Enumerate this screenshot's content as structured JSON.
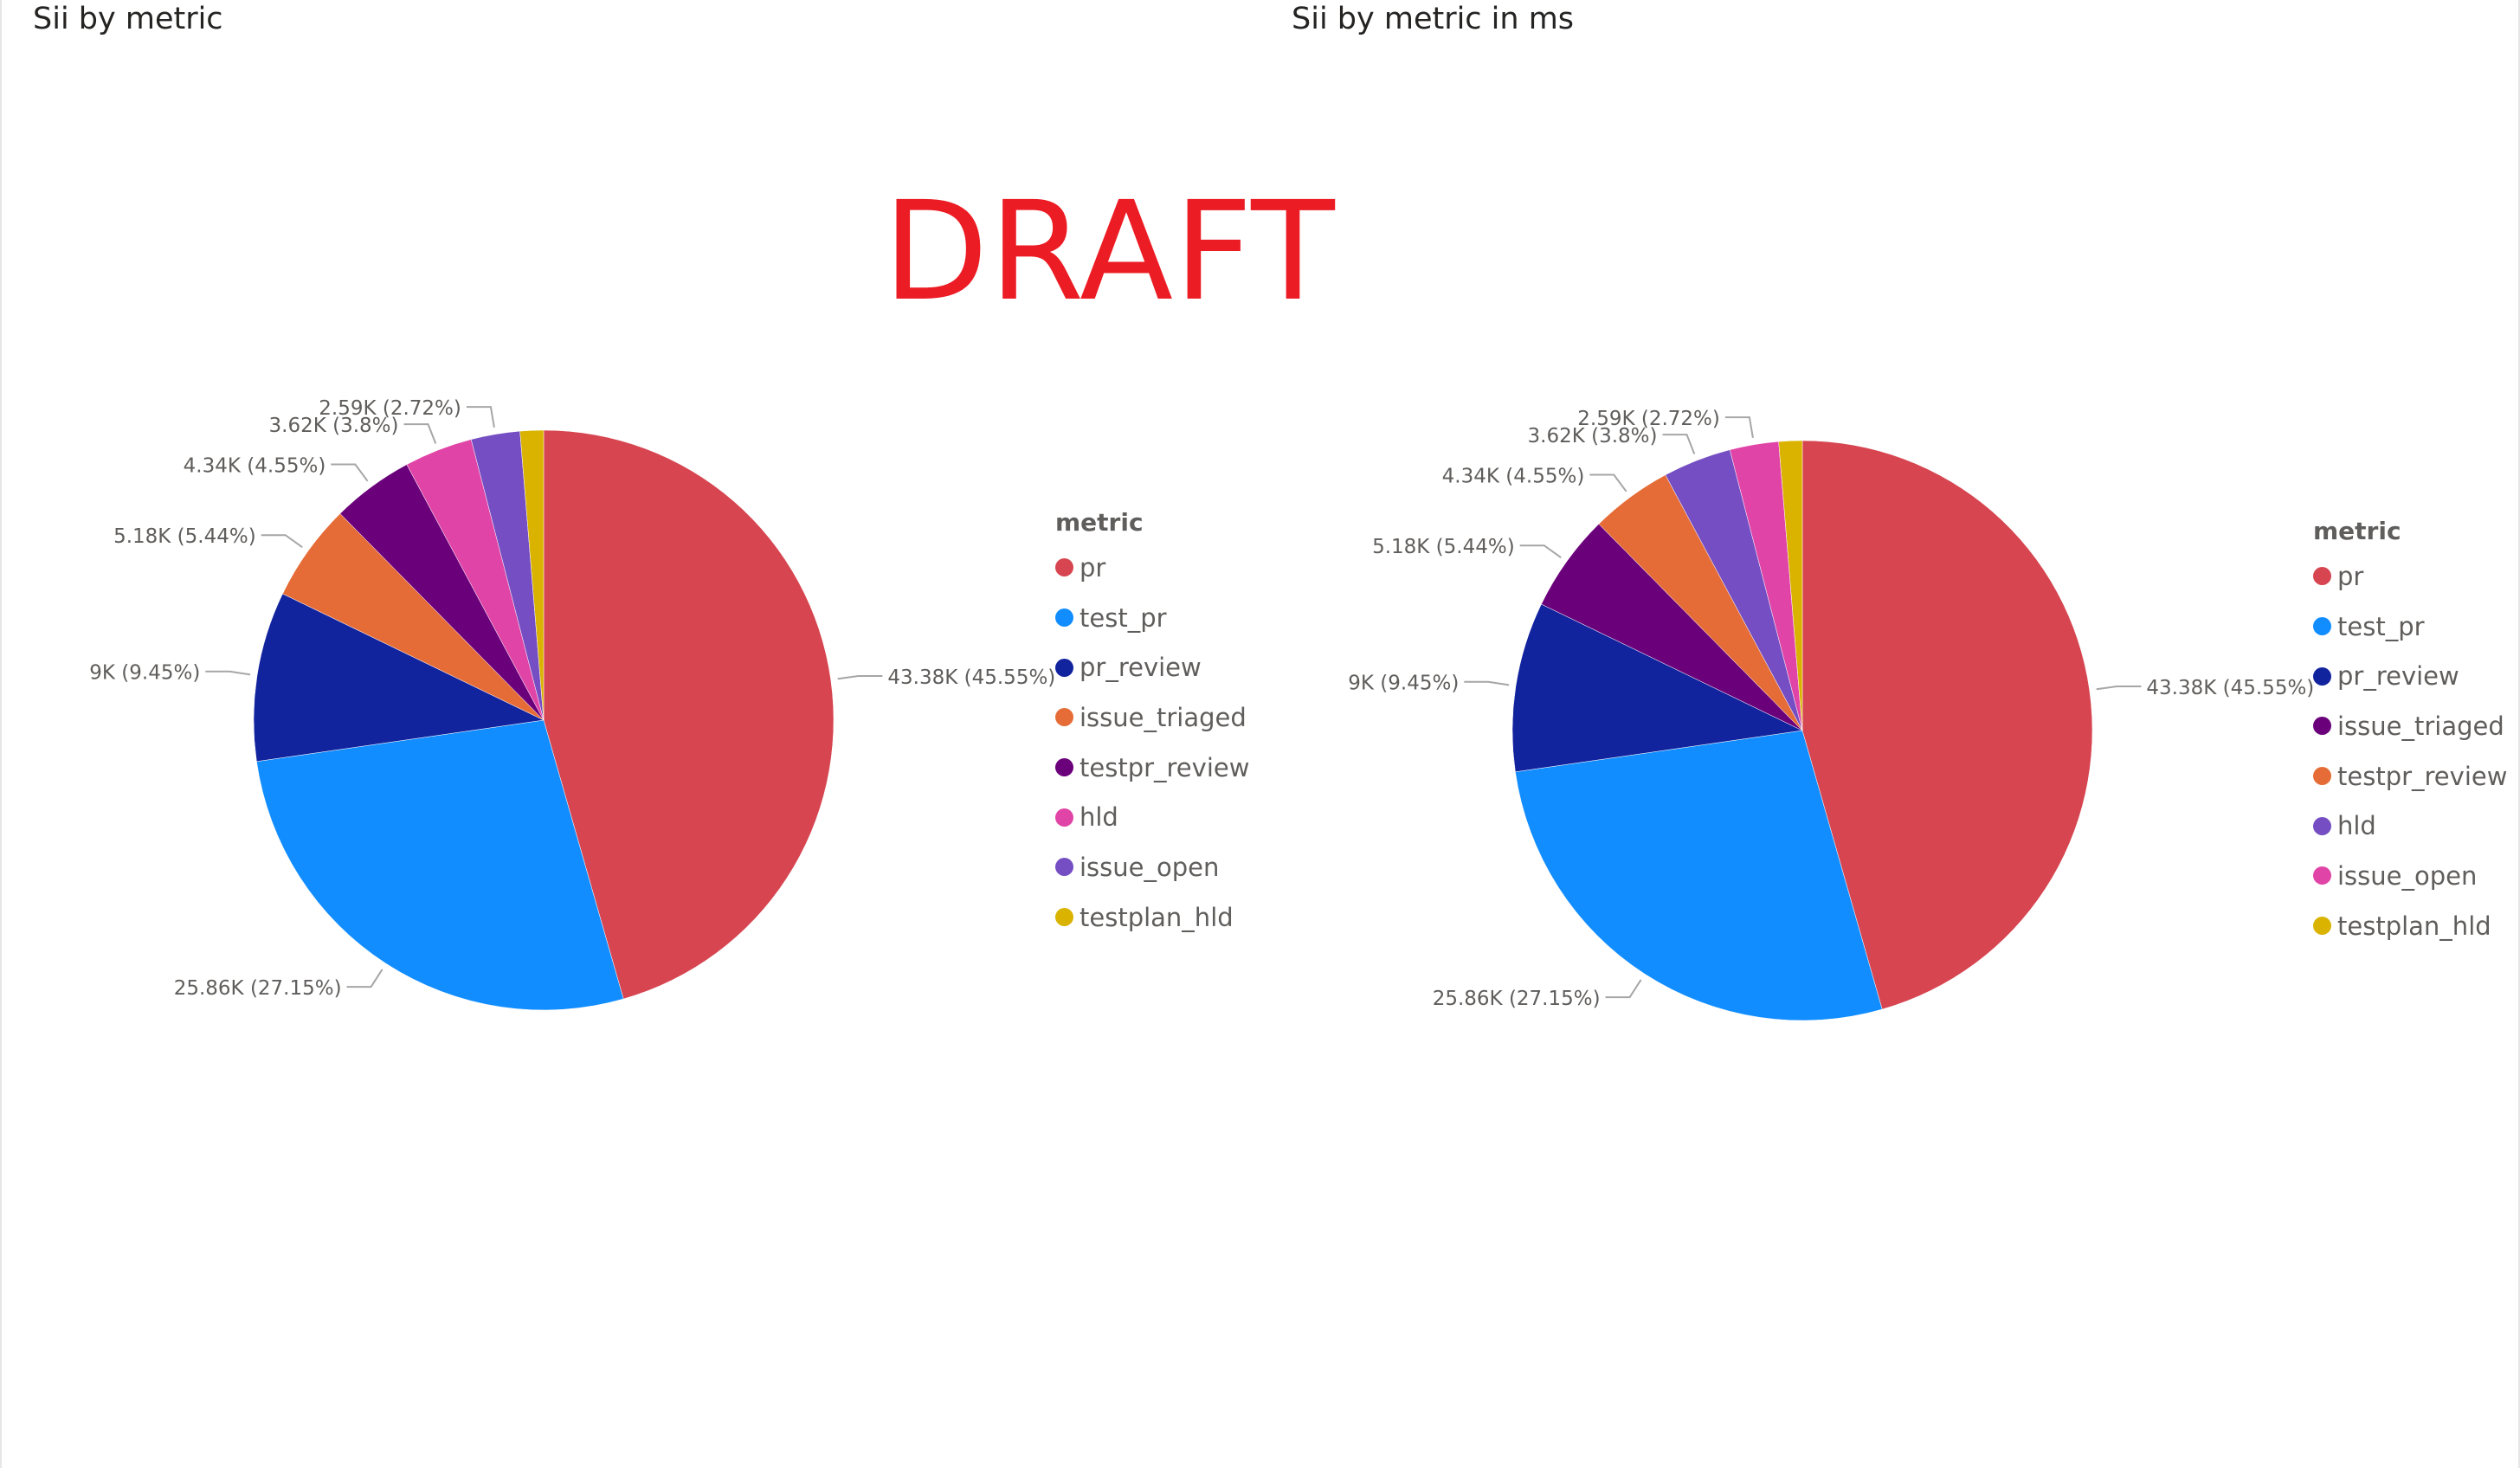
{
  "watermark": "DRAFT",
  "chart_data": [
    {
      "type": "pie",
      "title": "Sii by metric",
      "legend_title": "metric",
      "legend_position": "right",
      "legend": [
        "pr",
        "test_pr",
        "pr_review",
        "issue_triaged",
        "testpr_review",
        "hld",
        "issue_open",
        "testplan_hld"
      ],
      "legend_colors": [
        "#d64550",
        "#118dff",
        "#12239e",
        "#e66c37",
        "#6b007b",
        "#e044a7",
        "#744ec2",
        "#d9b300"
      ],
      "slices": [
        {
          "label": "pr",
          "value": 43380,
          "percent": 45.55,
          "color": "#d64550",
          "data_label": "43.38K (45.55%)"
        },
        {
          "label": "test_pr",
          "value": 25860,
          "percent": 27.15,
          "color": "#118dff",
          "data_label": "25.86K (27.15%)"
        },
        {
          "label": "pr_review",
          "value": 9000,
          "percent": 9.45,
          "color": "#12239e",
          "data_label": "9K (9.45%)"
        },
        {
          "label": "issue_triaged",
          "value": 5180,
          "percent": 5.44,
          "color": "#e66c37",
          "data_label": "5.18K (5.44%)"
        },
        {
          "label": "testpr_review",
          "value": 4340,
          "percent": 4.55,
          "color": "#6b007b",
          "data_label": "4.34K (4.55%)"
        },
        {
          "label": "hld",
          "value": 3620,
          "percent": 3.8,
          "color": "#e044a7",
          "data_label": "3.62K (3.8%)"
        },
        {
          "label": "issue_open",
          "value": 2590,
          "percent": 2.72,
          "color": "#744ec2",
          "data_label": "2.59K (2.72%)"
        },
        {
          "label": "testplan_hld",
          "value": 1240,
          "percent": 1.3,
          "color": "#d9b300",
          "data_label": ""
        }
      ]
    },
    {
      "type": "pie",
      "title": "Sii by metric in ms",
      "legend_title": "metric",
      "legend_position": "right",
      "legend": [
        "pr",
        "test_pr",
        "pr_review",
        "issue_triaged",
        "testpr_review",
        "hld",
        "issue_open",
        "testplan_hld"
      ],
      "legend_colors": [
        "#d64550",
        "#118dff",
        "#12239e",
        "#6b007b",
        "#e66c37",
        "#744ec2",
        "#e044a7",
        "#d9b300"
      ],
      "slices": [
        {
          "label": "pr",
          "value": 43380,
          "percent": 45.55,
          "color": "#d64550",
          "data_label": "43.38K (45.55%)"
        },
        {
          "label": "test_pr",
          "value": 25860,
          "percent": 27.15,
          "color": "#118dff",
          "data_label": "25.86K (27.15%)"
        },
        {
          "label": "pr_review",
          "value": 9000,
          "percent": 9.45,
          "color": "#12239e",
          "data_label": "9K (9.45%)"
        },
        {
          "label": "issue_triaged",
          "value": 5180,
          "percent": 5.44,
          "color": "#6b007b",
          "data_label": "5.18K (5.44%)"
        },
        {
          "label": "testpr_review",
          "value": 4340,
          "percent": 4.55,
          "color": "#e66c37",
          "data_label": "4.34K (4.55%)"
        },
        {
          "label": "hld",
          "value": 3620,
          "percent": 3.8,
          "color": "#744ec2",
          "data_label": "3.62K (3.8%)"
        },
        {
          "label": "issue_open",
          "value": 2590,
          "percent": 2.72,
          "color": "#e044a7",
          "data_label": "2.59K (2.72%)"
        },
        {
          "label": "testplan_hld",
          "value": 1240,
          "percent": 1.3,
          "color": "#d9b300",
          "data_label": ""
        }
      ]
    }
  ]
}
